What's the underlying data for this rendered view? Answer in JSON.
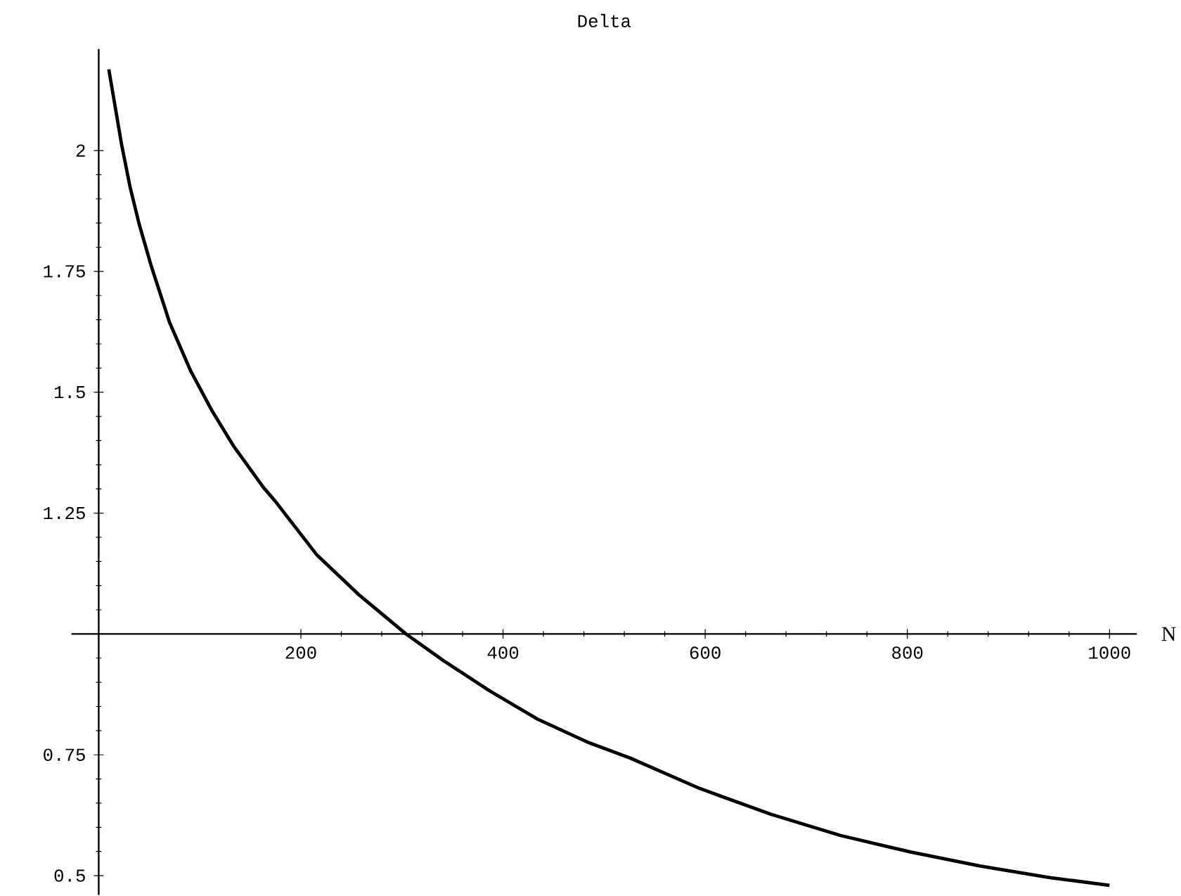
{
  "chart_data": {
    "type": "line",
    "title": "Delta",
    "xlabel": "N",
    "x": [
      10,
      22.7,
      31,
      40,
      52,
      70,
      91,
      112,
      133,
      163,
      174.5,
      216,
      258,
      304,
      341,
      387,
      434,
      485,
      526,
      595,
      665,
      734,
      803,
      872,
      941,
      1000
    ],
    "series": [
      {
        "color": "#000000",
        "values": [
          2.168,
          2.012,
          1.925,
          1.848,
          1.761,
          1.645,
          1.544,
          1.462,
          1.39,
          1.303,
          1.275,
          1.163,
          1.08,
          1.0,
          0.945,
          0.882,
          0.824,
          0.775,
          0.743,
          0.68,
          0.627,
          0.583,
          0.549,
          0.52,
          0.496,
          0.48
        ]
      }
    ],
    "xlim": [
      -27,
      1027
    ],
    "ylim": [
      0.46,
      2.21
    ],
    "xticks": [
      200,
      400,
      600,
      800,
      1000
    ],
    "yticks": [
      0.5,
      0.75,
      {
        "value": 1,
        "label": null
      },
      1.25,
      1.5,
      1.75,
      2
    ],
    "marker": "none",
    "line_style": "solid"
  }
}
